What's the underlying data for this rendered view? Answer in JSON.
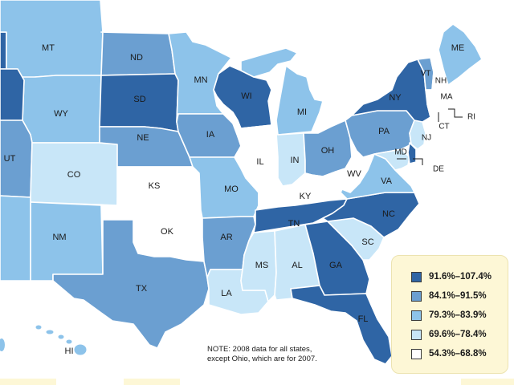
{
  "colors": {
    "c5": "#2f65a5",
    "c4": "#6b9fd1",
    "c3": "#8dc3ea",
    "c2": "#c8e6f8",
    "c1": "#ffffff",
    "border": "#ffffff",
    "legend_bg": "#fdf7d6"
  },
  "legend": {
    "items": [
      {
        "label": "91.6%–107.4%",
        "color": "#2f65a5"
      },
      {
        "label": "84.1%–91.5%",
        "color": "#6b9fd1"
      },
      {
        "label": "79.3%–83.9%",
        "color": "#8dc3ea"
      },
      {
        "label": "69.6%–78.4%",
        "color": "#c8e6f8"
      },
      {
        "label": "54.3%–68.8%",
        "color": "#ffffff"
      }
    ]
  },
  "note": {
    "line1": "NOTE: 2008 data for all states,",
    "line2": "except Ohio, which are for 2007."
  },
  "states": [
    {
      "abbr": "MT",
      "tier": 3
    },
    {
      "abbr": "ND",
      "tier": 4
    },
    {
      "abbr": "MN",
      "tier": 3
    },
    {
      "abbr": "WY",
      "tier": 3
    },
    {
      "abbr": "SD",
      "tier": 5
    },
    {
      "abbr": "WI",
      "tier": 5
    },
    {
      "abbr": "MI",
      "tier": 3
    },
    {
      "abbr": "UT",
      "tier": 4
    },
    {
      "abbr": "CO",
      "tier": 2
    },
    {
      "abbr": "NE",
      "tier": 4
    },
    {
      "abbr": "IA",
      "tier": 4
    },
    {
      "abbr": "IL",
      "tier": 1
    },
    {
      "abbr": "IN",
      "tier": 2
    },
    {
      "abbr": "OH",
      "tier": 4
    },
    {
      "abbr": "KS",
      "tier": 1
    },
    {
      "abbr": "MO",
      "tier": 3
    },
    {
      "abbr": "KY",
      "tier": 1
    },
    {
      "abbr": "WV",
      "tier": 1
    },
    {
      "abbr": "VA",
      "tier": 3
    },
    {
      "abbr": "PA",
      "tier": 4
    },
    {
      "abbr": "NY",
      "tier": 5
    },
    {
      "abbr": "NM",
      "tier": 3
    },
    {
      "abbr": "OK",
      "tier": 1
    },
    {
      "abbr": "AR",
      "tier": 4
    },
    {
      "abbr": "TN",
      "tier": 5
    },
    {
      "abbr": "NC",
      "tier": 5
    },
    {
      "abbr": "TX",
      "tier": 4
    },
    {
      "abbr": "LA",
      "tier": 2
    },
    {
      "abbr": "MS",
      "tier": 2
    },
    {
      "abbr": "AL",
      "tier": 2
    },
    {
      "abbr": "GA",
      "tier": 5
    },
    {
      "abbr": "SC",
      "tier": 2
    },
    {
      "abbr": "FL",
      "tier": 5
    },
    {
      "abbr": "ME",
      "tier": 3
    },
    {
      "abbr": "VT",
      "tier": 4
    },
    {
      "abbr": "NH",
      "tier": 1
    },
    {
      "abbr": "MA",
      "tier": 1
    },
    {
      "abbr": "CT",
      "tier": 1
    },
    {
      "abbr": "RI",
      "tier": 1
    },
    {
      "abbr": "NJ",
      "tier": 2
    },
    {
      "abbr": "DE",
      "tier": 5
    },
    {
      "abbr": "MD",
      "tier": 2
    },
    {
      "abbr": "HI",
      "tier": 3
    }
  ]
}
